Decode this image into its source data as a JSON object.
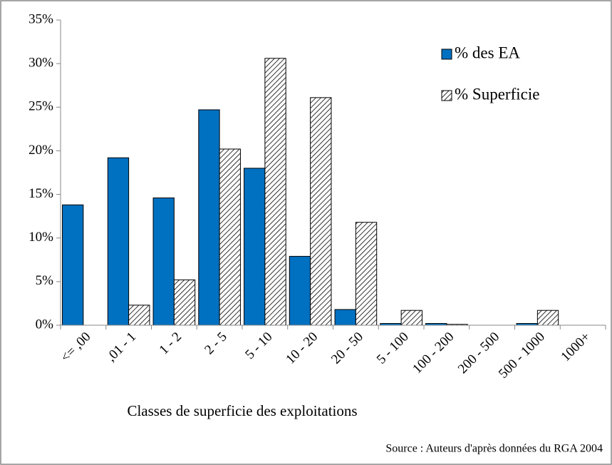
{
  "chart_data": {
    "type": "bar",
    "x_label": "Classes de superficie des exploitations",
    "source": "Source : Auteurs d'après données du RGA 2004",
    "categories": [
      "<= ,00",
      ",01 - 1",
      "1 - 2",
      "2 - 5",
      "5 - 10",
      "10 - 20",
      "20 - 50",
      "5 - 100",
      "100 - 200",
      "200 - 500",
      "500 - 1000",
      "1000+"
    ],
    "series": [
      {
        "name": "% des EA",
        "color": "#0070c0",
        "hatch": false,
        "values": [
          13.8,
          19.2,
          14.6,
          24.7,
          18.0,
          7.9,
          1.8,
          0.2,
          0.2,
          0,
          0.2,
          0
        ]
      },
      {
        "name": "% Superficie",
        "color": "#000000",
        "hatch": true,
        "values": [
          0,
          2.3,
          5.2,
          20.2,
          30.6,
          26.1,
          11.8,
          1.7,
          0.1,
          0,
          1.7,
          0
        ]
      }
    ],
    "ylim": [
      0,
      35
    ],
    "yticks": [
      {
        "value": 0,
        "label": "0%"
      },
      {
        "value": 5,
        "label": "5%"
      },
      {
        "value": 10,
        "label": "10%"
      },
      {
        "value": 15,
        "label": "15%"
      },
      {
        "value": 20,
        "label": "20%"
      },
      {
        "value": 25,
        "label": "25%"
      },
      {
        "value": 30,
        "label": "30%"
      },
      {
        "value": 35,
        "label": "35%"
      }
    ],
    "grid": false,
    "legend": "top-right"
  }
}
